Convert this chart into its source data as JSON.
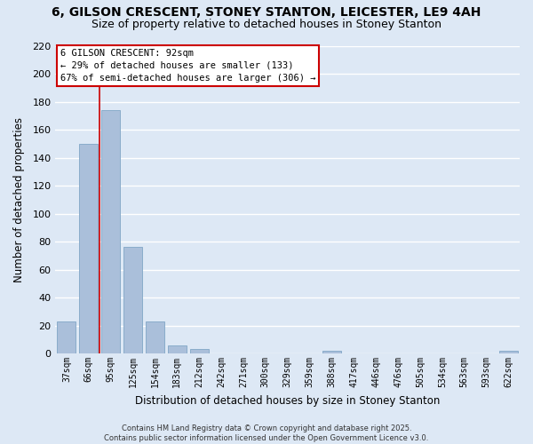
{
  "title_line1": "6, GILSON CRESCENT, STONEY STANTON, LEICESTER, LE9 4AH",
  "title_line2": "Size of property relative to detached houses in Stoney Stanton",
  "bar_labels": [
    "37sqm",
    "66sqm",
    "95sqm",
    "125sqm",
    "154sqm",
    "183sqm",
    "212sqm",
    "242sqm",
    "271sqm",
    "300sqm",
    "329sqm",
    "359sqm",
    "388sqm",
    "417sqm",
    "446sqm",
    "476sqm",
    "505sqm",
    "534sqm",
    "563sqm",
    "593sqm",
    "622sqm"
  ],
  "bar_values": [
    23,
    150,
    174,
    76,
    23,
    6,
    3,
    0,
    0,
    0,
    0,
    0,
    2,
    0,
    0,
    0,
    0,
    0,
    0,
    0,
    2
  ],
  "bar_color": "#aabfda",
  "bar_edge_color": "#8aaccb",
  "vline_x_index": 2,
  "vline_color": "#cc0000",
  "ylabel": "Number of detached properties",
  "xlabel": "Distribution of detached houses by size in Stoney Stanton",
  "ylim": [
    0,
    220
  ],
  "yticks": [
    0,
    20,
    40,
    60,
    80,
    100,
    120,
    140,
    160,
    180,
    200,
    220
  ],
  "annotation_title": "6 GILSON CRESCENT: 92sqm",
  "annotation_line2": "← 29% of detached houses are smaller (133)",
  "annotation_line3": "67% of semi-detached houses are larger (306) →",
  "annotation_box_color": "#ffffff",
  "annotation_box_edge": "#cc0000",
  "footer_line1": "Contains HM Land Registry data © Crown copyright and database right 2025.",
  "footer_line2": "Contains public sector information licensed under the Open Government Licence v3.0.",
  "background_color": "#dde8f5",
  "grid_color": "#ffffff",
  "title_fontsize": 10,
  "subtitle_fontsize": 9
}
